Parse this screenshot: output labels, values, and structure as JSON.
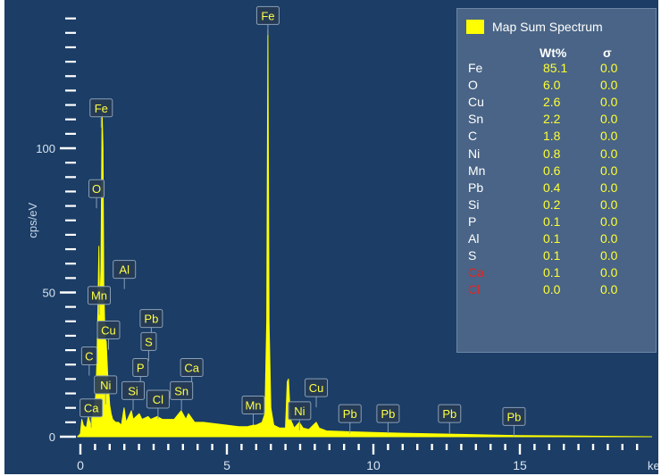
{
  "chart_data": {
    "type": "line",
    "xlabel": "keV",
    "ylabel": "cps/eV",
    "xlim": [
      -0.3,
      19.5
    ],
    "ylim": [
      -3,
      150
    ],
    "x_ticks": [
      0,
      5,
      10,
      15
    ],
    "y_ticks": [
      0,
      50,
      100
    ],
    "series_color": "#ffff00",
    "spectrum": [
      [
        -0.1,
        0
      ],
      [
        0.0,
        1
      ],
      [
        0.05,
        6
      ],
      [
        0.1,
        4
      ],
      [
        0.2,
        3
      ],
      [
        0.27,
        7
      ],
      [
        0.35,
        4
      ],
      [
        0.45,
        9
      ],
      [
        0.52,
        14
      ],
      [
        0.56,
        25
      ],
      [
        0.6,
        46
      ],
      [
        0.63,
        66
      ],
      [
        0.66,
        42
      ],
      [
        0.7,
        58
      ],
      [
        0.74,
        112
      ],
      [
        0.77,
        100
      ],
      [
        0.8,
        52
      ],
      [
        0.84,
        34
      ],
      [
        0.88,
        33
      ],
      [
        0.93,
        22
      ],
      [
        1.0,
        11
      ],
      [
        1.05,
        8
      ],
      [
        1.1,
        6
      ],
      [
        1.2,
        5
      ],
      [
        1.3,
        5
      ],
      [
        1.4,
        4
      ],
      [
        1.49,
        10
      ],
      [
        1.56,
        5
      ],
      [
        1.74,
        9
      ],
      [
        1.8,
        6
      ],
      [
        2.01,
        8
      ],
      [
        2.1,
        6
      ],
      [
        2.31,
        7
      ],
      [
        2.4,
        6
      ],
      [
        2.62,
        7
      ],
      [
        2.8,
        6
      ],
      [
        3.0,
        6
      ],
      [
        3.2,
        6
      ],
      [
        3.44,
        9
      ],
      [
        3.6,
        6
      ],
      [
        3.69,
        8
      ],
      [
        3.9,
        5
      ],
      [
        4.2,
        5
      ],
      [
        4.6,
        4.5
      ],
      [
        5.0,
        4
      ],
      [
        5.4,
        3.5
      ],
      [
        5.7,
        3.5
      ],
      [
        5.9,
        4
      ],
      [
        6.0,
        4
      ],
      [
        6.2,
        5
      ],
      [
        6.3,
        8
      ],
      [
        6.36,
        40
      ],
      [
        6.4,
        141
      ],
      [
        6.44,
        40
      ],
      [
        6.5,
        10
      ],
      [
        6.6,
        4
      ],
      [
        6.8,
        3
      ],
      [
        7.0,
        3
      ],
      [
        7.06,
        19
      ],
      [
        7.1,
        20
      ],
      [
        7.17,
        6
      ],
      [
        7.3,
        3
      ],
      [
        7.47,
        5
      ],
      [
        7.6,
        3
      ],
      [
        7.8,
        2.5
      ],
      [
        8.05,
        5
      ],
      [
        8.15,
        3
      ],
      [
        8.4,
        2
      ],
      [
        9.0,
        1.8
      ],
      [
        10.0,
        1.5
      ],
      [
        11.0,
        1.2
      ],
      [
        12.0,
        1
      ],
      [
        13.0,
        0.8
      ],
      [
        14.0,
        0.6
      ],
      [
        15.0,
        0.4
      ],
      [
        16.0,
        0.3
      ],
      [
        19.5,
        0
      ]
    ],
    "peak_labels": [
      {
        "text": "Fe",
        "x": 6.4,
        "y": 146
      },
      {
        "text": "Fe",
        "x": 0.71,
        "y": 114
      },
      {
        "text": "O",
        "x": 0.55,
        "y": 86
      },
      {
        "text": "Al",
        "x": 1.5,
        "y": 58
      },
      {
        "text": "Mn",
        "x": 0.64,
        "y": 49
      },
      {
        "text": "Pb",
        "x": 2.42,
        "y": 41
      },
      {
        "text": "Cu",
        "x": 0.96,
        "y": 37
      },
      {
        "text": "S",
        "x": 2.33,
        "y": 33
      },
      {
        "text": "C",
        "x": 0.3,
        "y": 28
      },
      {
        "text": "P",
        "x": 2.05,
        "y": 24
      },
      {
        "text": "Ca",
        "x": 3.8,
        "y": 24
      },
      {
        "text": "Ni",
        "x": 0.86,
        "y": 18
      },
      {
        "text": "Si",
        "x": 1.8,
        "y": 16
      },
      {
        "text": "Sn",
        "x": 3.45,
        "y": 16
      },
      {
        "text": "Cl",
        "x": 2.65,
        "y": 13
      },
      {
        "text": "Cu",
        "x": 8.05,
        "y": 17
      },
      {
        "text": "Mn",
        "x": 5.9,
        "y": 11
      },
      {
        "text": "Ca",
        "x": 0.37,
        "y": 10
      },
      {
        "text": "Ni",
        "x": 7.48,
        "y": 9
      },
      {
        "text": "Pb",
        "x": 9.2,
        "y": 8
      },
      {
        "text": "Pb",
        "x": 10.5,
        "y": 8
      },
      {
        "text": "Pb",
        "x": 12.6,
        "y": 8
      },
      {
        "text": "Pb",
        "x": 14.8,
        "y": 7
      }
    ],
    "legend": {
      "title": "Map Sum Spectrum",
      "headers": [
        "Wt%",
        "σ"
      ],
      "rows": [
        {
          "element": "Fe",
          "wt": "85.1",
          "sigma": "0.0",
          "color": "#ffffff"
        },
        {
          "element": "O",
          "wt": "6.0",
          "sigma": "0.0",
          "color": "#ffffff"
        },
        {
          "element": "Cu",
          "wt": "2.6",
          "sigma": "0.0",
          "color": "#ffffff"
        },
        {
          "element": "Sn",
          "wt": "2.2",
          "sigma": "0.0",
          "color": "#ffffff"
        },
        {
          "element": "C",
          "wt": "1.8",
          "sigma": "0.0",
          "color": "#ffffff"
        },
        {
          "element": "Ni",
          "wt": "0.8",
          "sigma": "0.0",
          "color": "#ffffff"
        },
        {
          "element": "Mn",
          "wt": "0.6",
          "sigma": "0.0",
          "color": "#ffffff"
        },
        {
          "element": "Pb",
          "wt": "0.4",
          "sigma": "0.0",
          "color": "#ffffff"
        },
        {
          "element": "Si",
          "wt": "0.2",
          "sigma": "0.0",
          "color": "#ffffff"
        },
        {
          "element": "P",
          "wt": "0.1",
          "sigma": "0.0",
          "color": "#ffffff"
        },
        {
          "element": "Al",
          "wt": "0.1",
          "sigma": "0.0",
          "color": "#ffffff"
        },
        {
          "element": "S",
          "wt": "0.1",
          "sigma": "0.0",
          "color": "#ffffff"
        },
        {
          "element": "Ca",
          "wt": "0.1",
          "sigma": "0.0",
          "color": "#e02626"
        },
        {
          "element": "Cl",
          "wt": "0.0",
          "sigma": "0.0",
          "color": "#e02626"
        }
      ]
    }
  }
}
